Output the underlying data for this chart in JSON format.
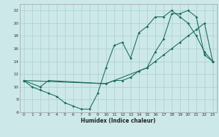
{
  "xlabel": "Humidex (Indice chaleur)",
  "bg_color": "#cce8e8",
  "grid_color": "#aacccc",
  "line_color": "#1a6b5a",
  "xlim": [
    -0.5,
    23.5
  ],
  "ylim": [
    6,
    23
  ],
  "xticks": [
    0,
    1,
    2,
    3,
    4,
    5,
    6,
    7,
    8,
    9,
    10,
    11,
    12,
    13,
    14,
    15,
    16,
    17,
    18,
    19,
    20,
    21,
    22,
    23
  ],
  "yticks": [
    6,
    8,
    10,
    12,
    14,
    16,
    18,
    20,
    22
  ],
  "line1_x": [
    0,
    1,
    2,
    3,
    4,
    5,
    6,
    7,
    8,
    9,
    10,
    11,
    12,
    13,
    14,
    15,
    16,
    17,
    18,
    19,
    20,
    21,
    22,
    23
  ],
  "line1_y": [
    11,
    10,
    9.5,
    9,
    8.5,
    7.5,
    7,
    6.5,
    6.5,
    9,
    13,
    16.5,
    17,
    14.5,
    18.5,
    19.5,
    21,
    21,
    22,
    21,
    20,
    18,
    15.5,
    14
  ],
  "line2_x": [
    0,
    2,
    3,
    10,
    11,
    12,
    13,
    14,
    15,
    16,
    17,
    18,
    19,
    20,
    21,
    22,
    23
  ],
  "line2_y": [
    11,
    10,
    11,
    10.5,
    11,
    11,
    11.5,
    12.5,
    13,
    14,
    15,
    16,
    17,
    18,
    19,
    20,
    14
  ],
  "line3_x": [
    0,
    10,
    14,
    15,
    16,
    17,
    18,
    19,
    20,
    21,
    22,
    23
  ],
  "line3_y": [
    11,
    10.5,
    12.5,
    13,
    15.5,
    17.5,
    21.5,
    21.5,
    22,
    21,
    15,
    14
  ]
}
